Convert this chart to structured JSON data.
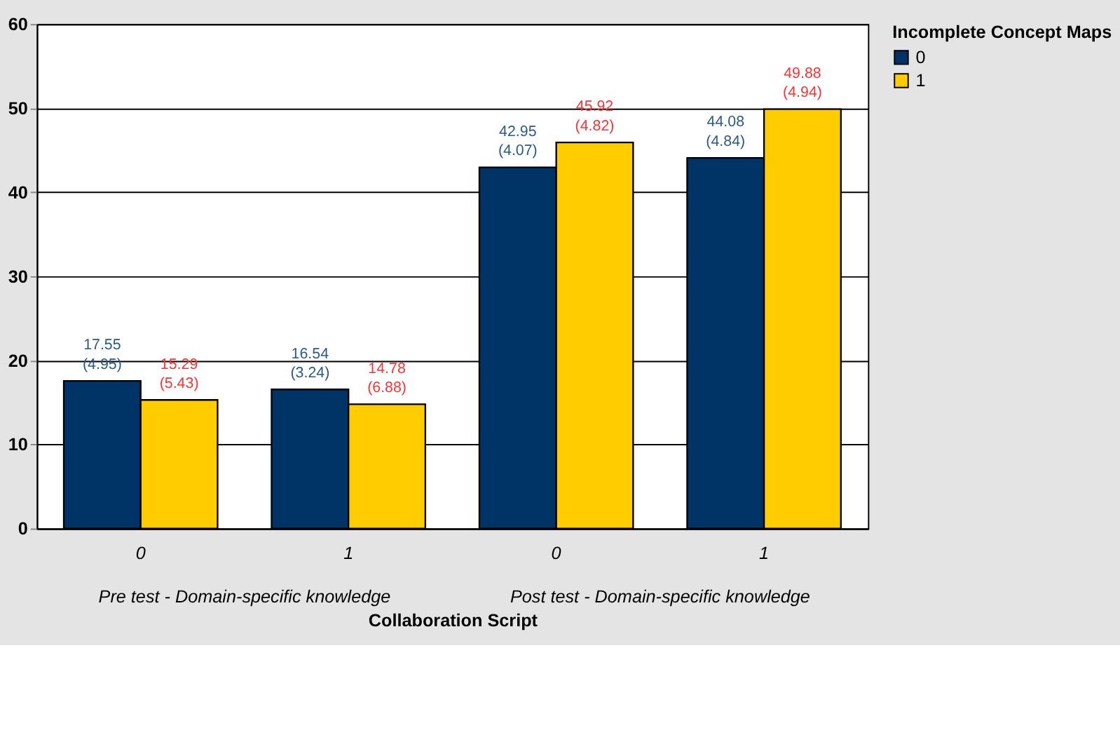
{
  "chart_data": {
    "type": "bar",
    "xlabel": "Collaboration Script",
    "legend_title": "Incomplete Concept Maps",
    "categories": [
      "0",
      "1",
      "0",
      "1"
    ],
    "series": [
      {
        "name": "0",
        "color": "#003366",
        "values": [
          17.55,
          16.54,
          42.95,
          44.08
        ],
        "value_labels": [
          "17.55\n(4.95)",
          "16.54\n(3.24)",
          "42.95\n(4.07)",
          "44.08\n(4.84)"
        ]
      },
      {
        "name": "1",
        "color": "#ffcc00",
        "values": [
          15.29,
          14.78,
          45.92,
          49.88
        ],
        "value_labels": [
          "15.29\n(5.43)",
          "14.78\n(6.88)",
          "45.92\n(4.82)",
          "49.88\n(4.94)"
        ]
      }
    ],
    "annotations": [
      "Pre test - Domain-specific knowledge",
      "Post test - Domain-specific knowledge"
    ],
    "ylim": [
      0,
      60
    ],
    "yticks": [
      0,
      10,
      20,
      30,
      40,
      50,
      60
    ],
    "grid": "y",
    "legend": "right"
  }
}
